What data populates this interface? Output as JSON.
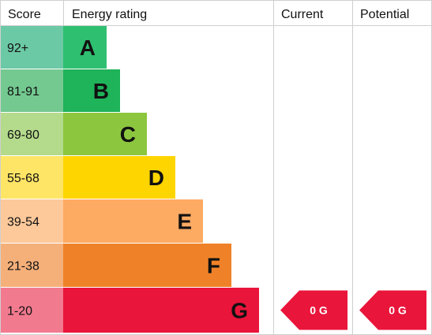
{
  "headers": {
    "score": "Score",
    "energy_rating": "Energy rating",
    "current": "Current",
    "potential": "Potential"
  },
  "chart_data": {
    "type": "bar",
    "bands": [
      {
        "letter": "A",
        "score": "92+",
        "color": "#2fbf71",
        "score_bg": "#6cc9a6"
      },
      {
        "letter": "B",
        "score": "81-91",
        "color": "#1fb35a",
        "score_bg": "#73c990"
      },
      {
        "letter": "C",
        "score": "69-80",
        "color": "#8cc63f",
        "score_bg": "#b4db8c"
      },
      {
        "letter": "D",
        "score": "55-68",
        "color": "#ffd500",
        "score_bg": "#ffe566"
      },
      {
        "letter": "E",
        "score": "39-54",
        "color": "#fdaa63",
        "score_bg": "#fdc99b"
      },
      {
        "letter": "F",
        "score": "21-38",
        "color": "#ef8228",
        "score_bg": "#f5b07a"
      },
      {
        "letter": "G",
        "score": "1-20",
        "color": "#e9153b",
        "score_bg": "#f27a8f"
      }
    ],
    "current": {
      "label": "0 G",
      "band": "G",
      "color": "#e9153b"
    },
    "potential": {
      "label": "0 G",
      "band": "G",
      "color": "#e9153b"
    }
  }
}
